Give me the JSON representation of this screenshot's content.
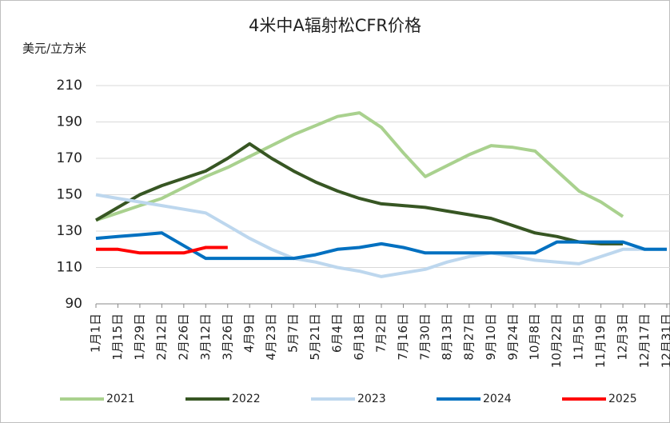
{
  "chart_data": {
    "type": "line",
    "title": "4米中A辐射松CFR价格",
    "y_label": "美元/立方米",
    "categories": [
      "1月1日",
      "1月15日",
      "1月29日",
      "2月12日",
      "2月26日",
      "3月12日",
      "3月26日",
      "4月9日",
      "4月23日",
      "5月7日",
      "5月21日",
      "6月4日",
      "6月18日",
      "7月2日",
      "7月16日",
      "7月30日",
      "8月13日",
      "8月27日",
      "9月10日",
      "9月24日",
      "10月8日",
      "10月22日",
      "11月5日",
      "11月19日",
      "12月3日",
      "12月17日",
      "12月31日"
    ],
    "series": [
      {
        "name": "2021",
        "color": "#a9d18e",
        "values": [
          136,
          140,
          144,
          148,
          154,
          160,
          165,
          171,
          177,
          183,
          188,
          193,
          195,
          187,
          173,
          160,
          166,
          172,
          177,
          176,
          174,
          163,
          152,
          146,
          138,
          null,
          null
        ]
      },
      {
        "name": "2022",
        "color": "#375623",
        "values": [
          136,
          143,
          150,
          155,
          159,
          163,
          170,
          178,
          170,
          163,
          157,
          152,
          148,
          145,
          144,
          143,
          141,
          139,
          137,
          133,
          129,
          127,
          124,
          123,
          123,
          null,
          null
        ]
      },
      {
        "name": "2023",
        "color": "#bdd7ee",
        "values": [
          150,
          148,
          146,
          144,
          142,
          140,
          133,
          126,
          120,
          115,
          113,
          110,
          108,
          105,
          107,
          109,
          113,
          116,
          118,
          116,
          114,
          113,
          112,
          116,
          120,
          120,
          120
        ]
      },
      {
        "name": "2024",
        "color": "#0070c0",
        "values": [
          126,
          127,
          128,
          129,
          122,
          115,
          115,
          115,
          115,
          115,
          117,
          120,
          121,
          123,
          121,
          118,
          118,
          118,
          118,
          118,
          118,
          124,
          124,
          124,
          124,
          120,
          120
        ]
      },
      {
        "name": "2025",
        "color": "#ff0000",
        "values": [
          120,
          120,
          118,
          118,
          118,
          121,
          121,
          null,
          null,
          null,
          null,
          null,
          null,
          null,
          null,
          null,
          null,
          null,
          null,
          null,
          null,
          null,
          null,
          null,
          null,
          null,
          null
        ]
      }
    ],
    "ylim": [
      90,
      210
    ],
    "yticks": [
      90,
      110,
      130,
      150,
      170,
      190,
      210
    ],
    "grid": true,
    "legend": "bottom"
  }
}
